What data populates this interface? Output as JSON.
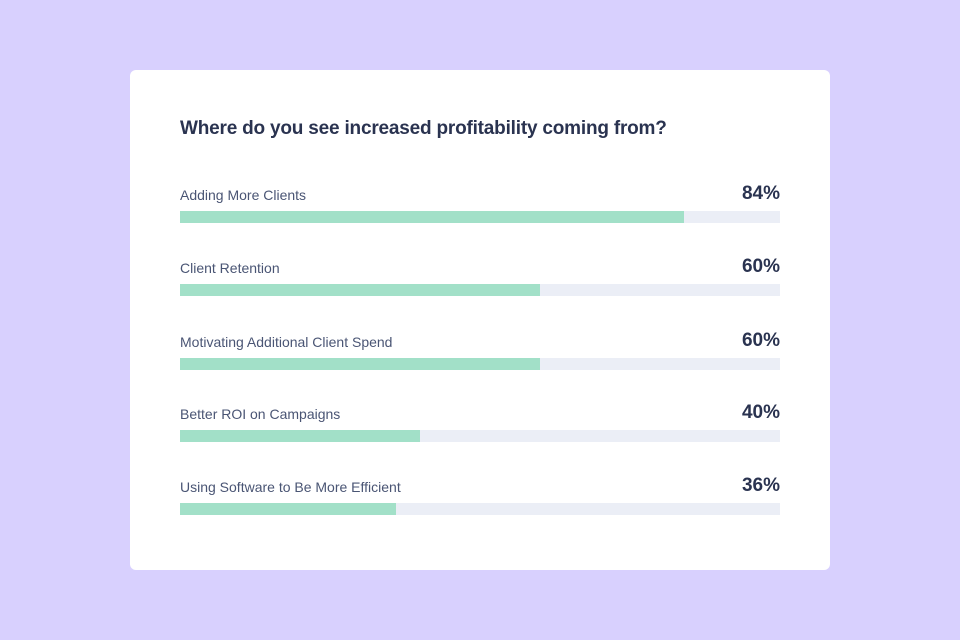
{
  "colors": {
    "background": "#d8d0fe",
    "card": "#ffffff",
    "bar_fill": "#a2e0c8",
    "bar_track": "#ebeef6",
    "title_text": "#2a3350",
    "label_text": "#4a5574"
  },
  "chart_data": {
    "type": "bar",
    "orientation": "horizontal",
    "title": "Where do you see increased profitability coming from?",
    "xlim": [
      0,
      100
    ],
    "categories": [
      "Adding More Clients",
      "Client Retention",
      "Motivating Additional Client Spend",
      "Better ROI on Campaigns",
      "Using Software to Be More Efficient"
    ],
    "values": [
      84,
      60,
      60,
      40,
      36
    ],
    "value_labels": [
      "84%",
      "60%",
      "60%",
      "40%",
      "36%"
    ],
    "grid": false,
    "legend": "none"
  }
}
